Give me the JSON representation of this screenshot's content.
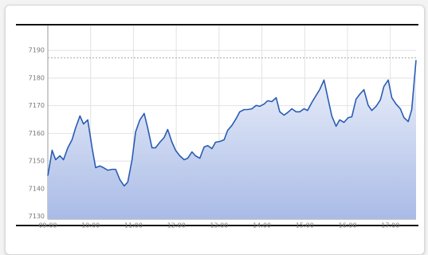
{
  "chart_data": {
    "type": "area",
    "x": [
      "09:00",
      "09:06",
      "09:11",
      "09:17",
      "09:22",
      "09:28",
      "09:34",
      "09:39",
      "09:45",
      "09:50",
      "09:56",
      "10:02",
      "10:07",
      "10:13",
      "10:18",
      "10:24",
      "10:30",
      "10:35",
      "10:41",
      "10:47",
      "10:52",
      "10:58",
      "11:03",
      "11:09",
      "11:15",
      "11:20",
      "11:26",
      "11:31",
      "11:37",
      "11:43",
      "11:48",
      "11:54",
      "11:59",
      "12:05",
      "12:11",
      "12:16",
      "12:22",
      "12:27",
      "12:33",
      "12:39",
      "12:44",
      "12:50",
      "12:55",
      "13:01",
      "13:07",
      "13:12",
      "13:18",
      "13:24",
      "13:29",
      "13:35",
      "13:40",
      "13:46",
      "13:52",
      "13:57",
      "14:03",
      "14:08",
      "14:14",
      "14:20",
      "14:25",
      "14:31",
      "14:36",
      "14:42",
      "14:48",
      "14:53",
      "14:59",
      "15:04",
      "15:10",
      "15:16",
      "15:21",
      "15:27",
      "15:33",
      "15:38",
      "15:44",
      "15:49",
      "15:55",
      "16:01",
      "16:06",
      "16:12",
      "16:17",
      "16:23",
      "16:29",
      "16:34",
      "16:40",
      "16:46",
      "16:51",
      "16:57",
      "17:02",
      "17:08",
      "17:14",
      "17:19",
      "17:25",
      "17:30",
      "17:36"
    ],
    "values": [
      7144.7,
      7153.9,
      7150.5,
      7151.9,
      7150.5,
      7154.8,
      7157.7,
      7162.0,
      7166.3,
      7163.4,
      7164.9,
      7154.8,
      7147.6,
      7148.2,
      7147.6,
      7146.7,
      7147.0,
      7147.0,
      7143.3,
      7141.0,
      7142.4,
      7150.5,
      7160.5,
      7164.9,
      7167.2,
      7162.0,
      7154.8,
      7154.8,
      7156.8,
      7158.5,
      7161.4,
      7156.8,
      7153.9,
      7151.9,
      7150.5,
      7151.0,
      7153.3,
      7151.9,
      7151.0,
      7155.1,
      7155.6,
      7154.5,
      7156.8,
      7157.1,
      7157.7,
      7161.1,
      7162.9,
      7165.4,
      7167.8,
      7168.6,
      7168.6,
      7168.9,
      7170.1,
      7169.8,
      7170.6,
      7171.8,
      7171.5,
      7172.9,
      7167.8,
      7166.6,
      7167.5,
      7168.9,
      7167.8,
      7167.8,
      7168.9,
      7168.3,
      7171.2,
      7173.8,
      7175.8,
      7179.3,
      7172.1,
      7166.3,
      7162.6,
      7164.9,
      7164.0,
      7165.7,
      7166.0,
      7172.4,
      7174.1,
      7175.8,
      7170.1,
      7168.3,
      7169.8,
      7172.1,
      7177.0,
      7179.3,
      7172.9,
      7170.6,
      7168.9,
      7165.7,
      7164.3,
      7168.6,
      7186.5
    ],
    "color": "#2a5cb4",
    "reference_value": 7187.3,
    "xlim": [
      "09:00",
      "17:36"
    ],
    "xticks": [
      "09:00",
      "10:00",
      "11:00",
      "12:00",
      "13:00",
      "14:00",
      "15:00",
      "16:00",
      "17:00"
    ],
    "ylim": [
      7129,
      7199
    ],
    "yticks": [
      7130,
      7140,
      7150,
      7160,
      7170,
      7180,
      7190
    ],
    "grid": true
  }
}
